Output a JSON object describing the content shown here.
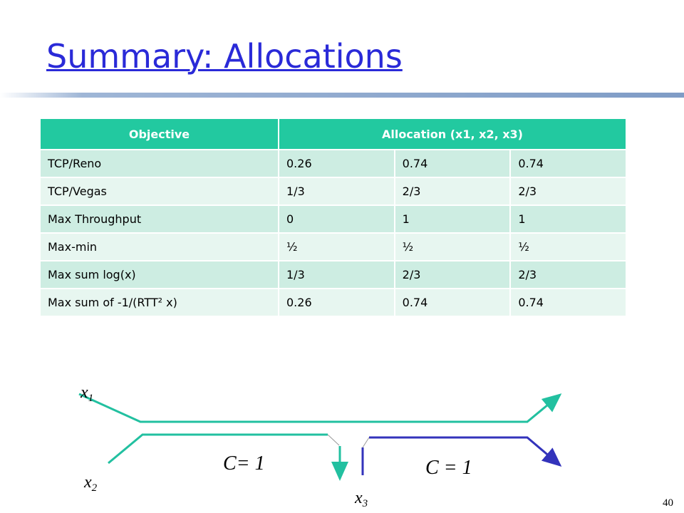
{
  "header": {
    "title": "Summary: Allocations"
  },
  "table": {
    "header": [
      "Objective",
      "Allocation (x1, x2, x3)"
    ],
    "rows": [
      [
        "TCP/Reno",
        "0.26",
        "0.74",
        "0.74"
      ],
      [
        "TCP/Vegas",
        "1/3",
        "2/3",
        "2/3"
      ],
      [
        "Max Throughput",
        "0",
        "1",
        "1"
      ],
      [
        "Max-min",
        "½",
        "½",
        "½"
      ],
      [
        "Max sum log(x)",
        "1/3",
        "2/3",
        "2/3"
      ],
      [
        "Max sum of -1/(RTT² x)",
        "0.26",
        "0.74",
        "0.74"
      ]
    ]
  },
  "diagram": {
    "flows": [
      {
        "base": "x",
        "sub": "1"
      },
      {
        "base": "x",
        "sub": "2"
      },
      {
        "base": "x",
        "sub": "3"
      }
    ],
    "capacities": [
      "C= 1",
      "C = 1"
    ]
  },
  "footer": {
    "page": "40"
  }
}
